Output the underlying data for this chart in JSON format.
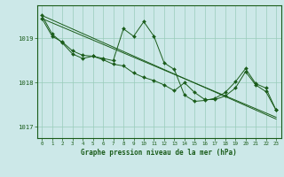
{
  "title": "Graphe pression niveau de la mer (hPa)",
  "bg_color": "#cce8e8",
  "grid_color": "#99ccbb",
  "line_color": "#1a5c1a",
  "xlim": [
    -0.5,
    23.5
  ],
  "ylim": [
    1016.75,
    1019.75
  ],
  "yticks": [
    1017,
    1018,
    1019
  ],
  "xticks": [
    0,
    1,
    2,
    3,
    4,
    5,
    6,
    7,
    8,
    9,
    10,
    11,
    12,
    13,
    14,
    15,
    16,
    17,
    18,
    19,
    20,
    21,
    22,
    23
  ],
  "series_straight1": {
    "x": [
      0,
      23
    ],
    "y": [
      1019.52,
      1017.18
    ]
  },
  "series_straight2": {
    "x": [
      0,
      23
    ],
    "y": [
      1019.45,
      1017.22
    ]
  },
  "series_main": {
    "x": [
      0,
      1,
      2,
      3,
      4,
      5,
      6,
      7,
      8,
      9,
      10,
      11,
      12,
      13,
      14,
      15,
      16,
      17,
      18,
      19,
      20,
      21,
      22,
      23
    ],
    "y": [
      1019.52,
      1019.1,
      1018.9,
      1018.65,
      1018.55,
      1018.6,
      1018.55,
      1018.5,
      1019.22,
      1019.05,
      1019.38,
      1019.05,
      1018.45,
      1018.3,
      1017.72,
      1017.58,
      1017.6,
      1017.65,
      1017.78,
      1018.02,
      1018.32,
      1017.98,
      1017.88,
      1017.38
    ]
  },
  "series_second": {
    "x": [
      0,
      1,
      2,
      3,
      4,
      5,
      6,
      7,
      8,
      9,
      10,
      11,
      12,
      13,
      14,
      15,
      16,
      17,
      18,
      19,
      20,
      21,
      22,
      23
    ],
    "y": [
      1019.45,
      1019.05,
      1018.92,
      1018.72,
      1018.62,
      1018.6,
      1018.52,
      1018.42,
      1018.38,
      1018.22,
      1018.12,
      1018.05,
      1017.95,
      1017.82,
      1018.0,
      1017.78,
      1017.62,
      1017.62,
      1017.7,
      1017.88,
      1018.25,
      1017.95,
      1017.8,
      1017.38
    ]
  }
}
